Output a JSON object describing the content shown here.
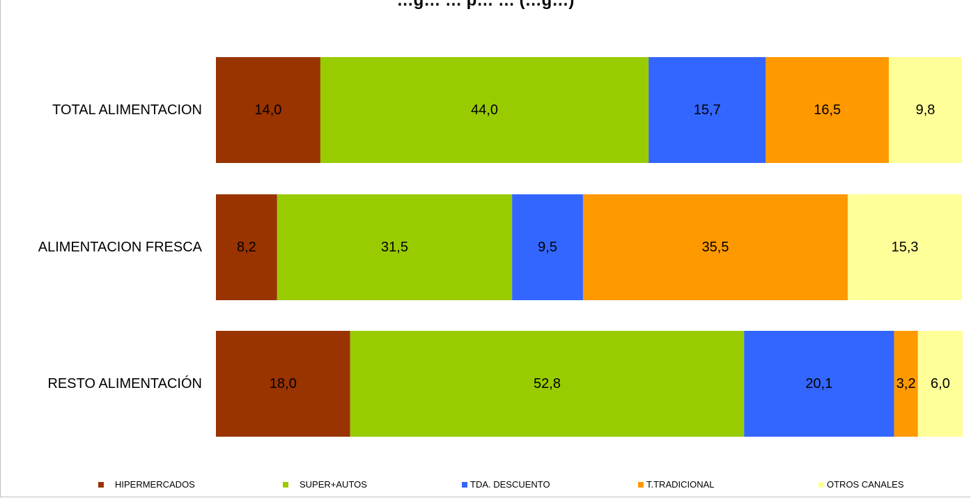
{
  "title": "…g… … p… … (…g…)",
  "chart_data": {
    "type": "bar",
    "orientation": "horizontal",
    "stacked": true,
    "percent": true,
    "categories": [
      "TOTAL ALIMENTACION",
      "ALIMENTACION FRESCA",
      "RESTO ALIMENTACIÓN"
    ],
    "series": [
      {
        "name": "HIPERMERCADOS",
        "color": "#993300",
        "values": [
          14.0,
          8.2,
          18.0
        ],
        "labels": [
          "14,0",
          "8,2",
          "18,0"
        ]
      },
      {
        "name": "SUPER+AUTOS",
        "color": "#99cc00",
        "values": [
          44.0,
          31.5,
          52.8
        ],
        "labels": [
          "44,0",
          "31,5",
          "52,8"
        ]
      },
      {
        "name": "TDA. DESCUENTO",
        "color": "#3366ff",
        "values": [
          15.7,
          9.5,
          20.1
        ],
        "labels": [
          "15,7",
          "9,5",
          "20,1"
        ]
      },
      {
        "name": "T.TRADICIONAL",
        "color": "#ff9900",
        "values": [
          16.5,
          35.5,
          3.2
        ],
        "labels": [
          "16,5",
          "35,5",
          "3,2"
        ]
      },
      {
        "name": "OTROS CANALES",
        "color": "#ffff99",
        "values": [
          9.8,
          15.3,
          6.0
        ],
        "labels": [
          "9,8",
          "15,3",
          "6,0"
        ]
      }
    ],
    "xlim": [
      0,
      100
    ],
    "grid": false,
    "legend_position": "bottom"
  }
}
